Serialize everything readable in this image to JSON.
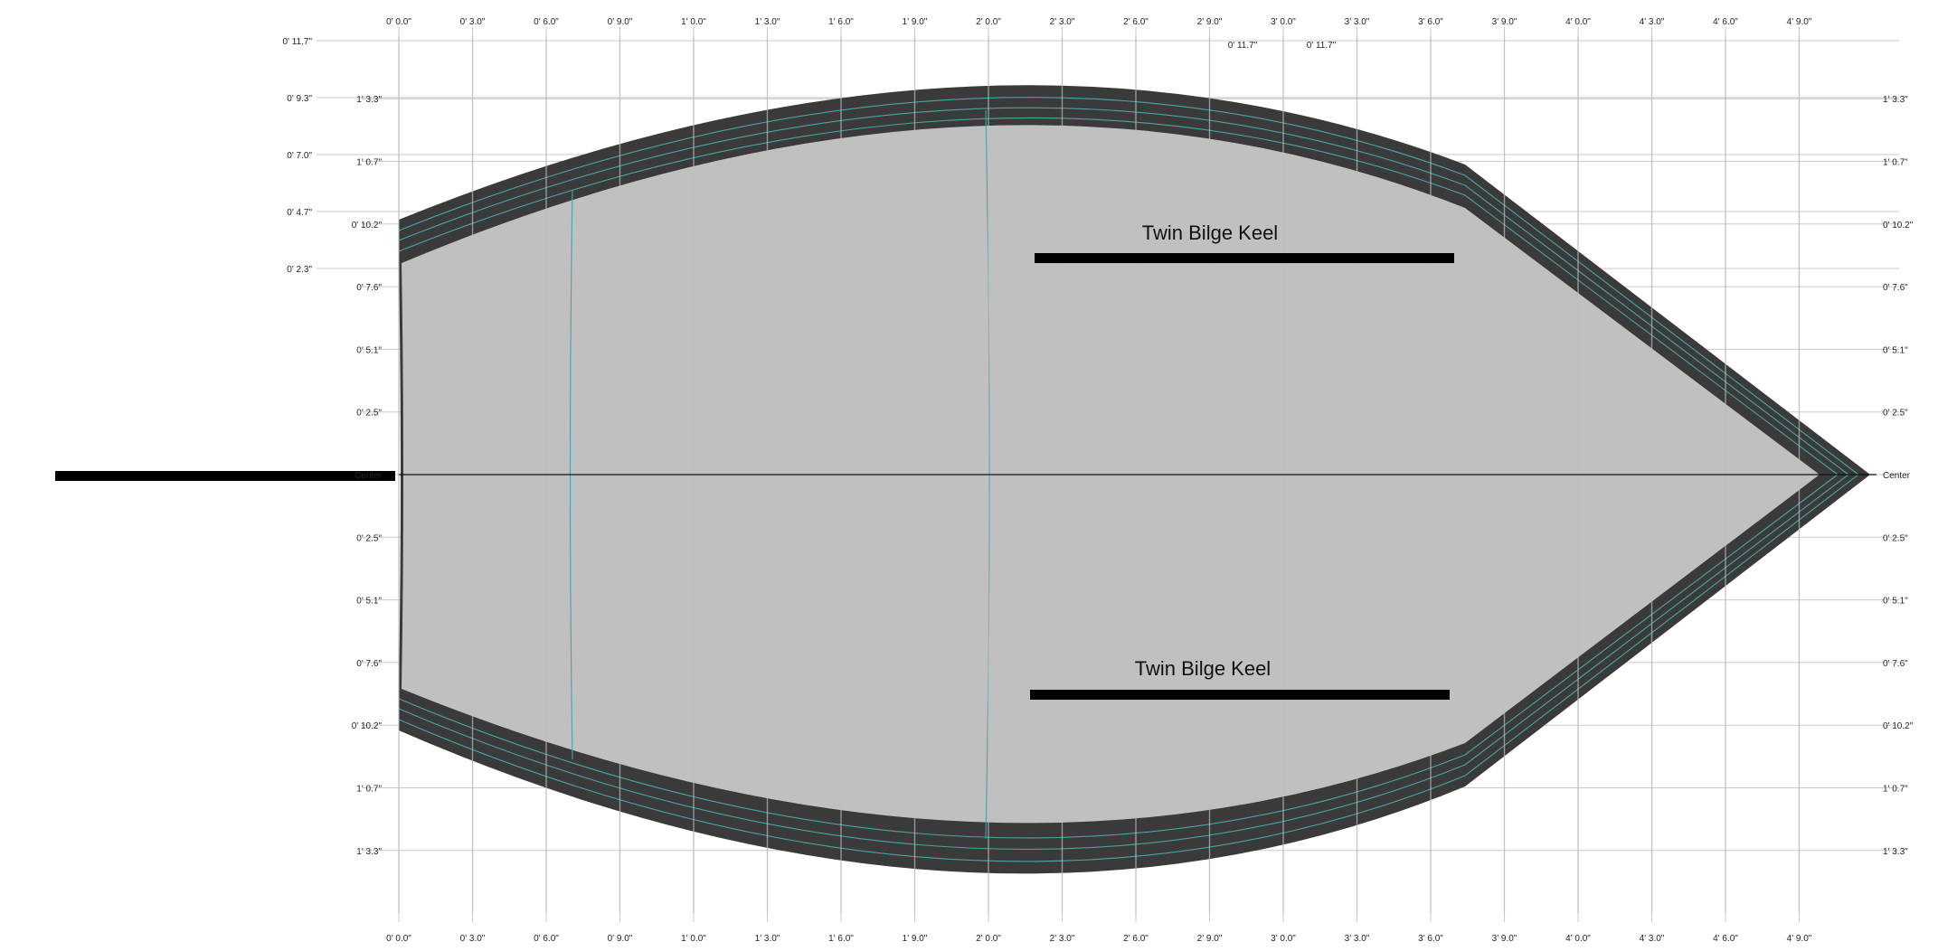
{
  "drawing": {
    "x_ticks": [
      "0' 0.0\"",
      "0' 3.0\"",
      "0' 6.0\"",
      "0' 9.0\"",
      "1' 0.0\"",
      "1' 3.0\"",
      "1' 6.0\"",
      "1' 9.0\"",
      "2' 0.0\"",
      "2' 3.0\"",
      "2' 6.0\"",
      "2' 9.0\"",
      "3' 0.0\"",
      "3' 3.0\"",
      "3' 6.0\"",
      "3' 9.0\"",
      "4' 0.0\"",
      "4' 3.0\"",
      "4' 6.0\"",
      "4' 9.0\""
    ],
    "y_left_ticks": [
      "1' 3.3\"",
      "1' 0.7\"",
      "0' 10.2\"",
      "0' 7.6\"",
      "0' 5.1\"",
      "0' 2.5\"",
      "Center",
      "0' 2.5\"",
      "0' 5.1\"",
      "0' 7.6\"",
      "0' 10.2\"",
      "1' 0.7\"",
      "1' 3.3\""
    ],
    "y_right_ticks": [
      "1' 3.3\"",
      "1' 0.7\"",
      "0' 10.2\"",
      "0' 7.6\"",
      "0' 5.1\"",
      "0' 2.5\"",
      "Center",
      "0' 2.5\"",
      "0' 5.1\"",
      "0' 7.6\"",
      "0' 10.2\"",
      "1' 0.7\"",
      "1' 3.3\""
    ],
    "height_ticks": [
      "0' 11.7\"",
      "0' 9.3\"",
      "0' 7.0\"",
      "0' 4.7\"",
      "0' 2.3\""
    ],
    "top_mid_ticks": [
      "0' 11.7\"",
      "0' 11.7\""
    ],
    "keel_label_top": "Twin Bilge Keel",
    "keel_label_bottom": "Twin Bilge Keel",
    "colors": {
      "hull_outer": "#3a3a3a",
      "hull_inner": "#c0c0c0",
      "plank_lines": "#4aa3a3",
      "grid": "#c8c8c8",
      "center_label": "#ff0000",
      "keel": "#000000"
    }
  }
}
